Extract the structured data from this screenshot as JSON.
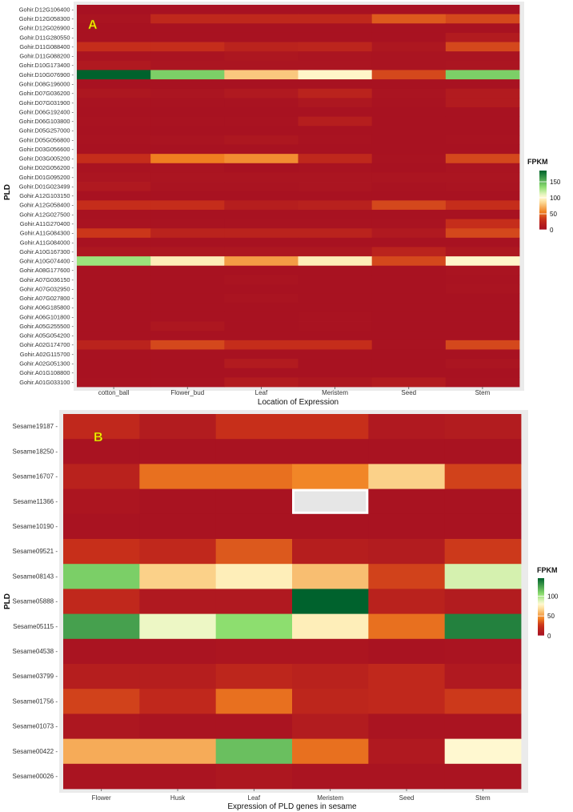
{
  "chart_data": [
    {
      "type": "heatmap",
      "panel_label": "A",
      "xlabel": "Location of Expression",
      "ylabel": "PLD",
      "categories": [
        "cotton_ball",
        "Flower_bud",
        "Leaf",
        "Meristem",
        "Seed",
        "Stem"
      ],
      "rows": [
        "Gohir.D12G106400",
        "Gohir.D12G058300",
        "Gohir.D12G026900",
        "Gohir.D11G280550",
        "Gohir.D11G088400",
        "Gohir.D11G088200",
        "Gohir.D10G173400",
        "Gohir.D10G076900",
        "Gohir.D08G196000",
        "Gohir.D07G036200",
        "Gohir.D07G031900",
        "Gohir.D06G192400",
        "Gohir.D06G103800",
        "Gohir.D05G257000",
        "Gohir.D05G056800",
        "Gohir.D03G056600",
        "Gohir.D03G005200",
        "Gohir.D02G056200",
        "Gohir.D01G095200",
        "Gohir.D01G023499",
        "Gohir.A12G103150",
        "Gohir.A12G058400",
        "Gohir.A12G027500",
        "Gohir.A11G270400",
        "Gohir.A11G084300",
        "Gohir.A11G084000",
        "Gohir.A10G167300",
        "Gohir.A10G074400",
        "Gohir.A08G177600",
        "Gohir.A07G036150",
        "Gohir.A07G032950",
        "Gohir.A07G027800",
        "Gohir.A06G185800",
        "Gohir.A06G101800",
        "Gohir.A05G255500",
        "Gohir.A05G054200",
        "Gohir.A02G174700",
        "Gohir.A02G115700",
        "Gohir.A02G051300",
        "Gohir.A01G108800",
        "Gohir.A01G033100"
      ],
      "values": [
        [
          2,
          2,
          2,
          2,
          2,
          2
        ],
        [
          5,
          25,
          25,
          25,
          45,
          40
        ],
        [
          3,
          3,
          3,
          3,
          3,
          3
        ],
        [
          3,
          3,
          3,
          3,
          3,
          12
        ],
        [
          30,
          30,
          20,
          22,
          8,
          40
        ],
        [
          5,
          5,
          8,
          6,
          5,
          5
        ],
        [
          10,
          6,
          6,
          6,
          5,
          6
        ],
        [
          185,
          140,
          80,
          100,
          40,
          140
        ],
        [
          3,
          3,
          3,
          3,
          3,
          3
        ],
        [
          8,
          6,
          10,
          20,
          5,
          12
        ],
        [
          4,
          4,
          4,
          8,
          4,
          12
        ],
        [
          3,
          3,
          3,
          3,
          3,
          3
        ],
        [
          4,
          4,
          4,
          15,
          3,
          3
        ],
        [
          3,
          3,
          3,
          3,
          3,
          3
        ],
        [
          4,
          5,
          8,
          4,
          3,
          4
        ],
        [
          3,
          3,
          3,
          3,
          3,
          3
        ],
        [
          30,
          55,
          60,
          25,
          4,
          40
        ],
        [
          4,
          5,
          3,
          4,
          3,
          5
        ],
        [
          6,
          6,
          6,
          6,
          6,
          6
        ],
        [
          10,
          5,
          5,
          6,
          4,
          5
        ],
        [
          3,
          3,
          3,
          3,
          3,
          3
        ],
        [
          30,
          30,
          15,
          18,
          40,
          30
        ],
        [
          3,
          3,
          3,
          3,
          3,
          3
        ],
        [
          4,
          4,
          4,
          4,
          4,
          30
        ],
        [
          35,
          20,
          20,
          20,
          10,
          40
        ],
        [
          3,
          3,
          3,
          3,
          3,
          3
        ],
        [
          8,
          8,
          8,
          8,
          20,
          8
        ],
        [
          130,
          95,
          65,
          95,
          40,
          100
        ],
        [
          3,
          3,
          3,
          3,
          3,
          5
        ],
        [
          3,
          3,
          5,
          3,
          3,
          4
        ],
        [
          3,
          3,
          3,
          3,
          3,
          5
        ],
        [
          3,
          3,
          5,
          3,
          3,
          3
        ],
        [
          3,
          3,
          3,
          3,
          3,
          3
        ],
        [
          3,
          3,
          3,
          4,
          3,
          3
        ],
        [
          3,
          8,
          3,
          4,
          3,
          3
        ],
        [
          3,
          3,
          3,
          3,
          3,
          3
        ],
        [
          20,
          40,
          30,
          30,
          4,
          40
        ],
        [
          3,
          3,
          3,
          3,
          3,
          3
        ],
        [
          3,
          3,
          12,
          3,
          3,
          6
        ],
        [
          3,
          3,
          3,
          3,
          3,
          3
        ],
        [
          4,
          4,
          12,
          8,
          12,
          4
        ]
      ],
      "legend": {
        "title": "FPKM",
        "ticks": [
          0,
          50,
          100,
          150
        ],
        "range": [
          0,
          185
        ],
        "position": "right"
      },
      "colors": {
        "low": "#a50f22",
        "mid_low": "#f08020",
        "mid": "#fffbd6",
        "mid_high": "#8fe070",
        "high": "#00622d"
      }
    },
    {
      "type": "heatmap",
      "panel_label": "B",
      "xlabel": "Expression of PLD genes in sesame",
      "ylabel": "PLD",
      "categories": [
        "Flower",
        "Husk",
        "Leaf",
        "Meristem",
        "Seed",
        "Stem"
      ],
      "rows": [
        "Sesame19187",
        "Sesame18250",
        "Sesame16707",
        "Sesame11366",
        "Sesame10190",
        "Sesame09521",
        "Sesame08143",
        "Sesame05888",
        "Sesame05115",
        "Sesame04538",
        "Sesame03799",
        "Sesame01756",
        "Sesame01073",
        "Sesame00422",
        "Sesame00026"
      ],
      "values": [
        [
          20,
          10,
          25,
          25,
          8,
          10
        ],
        [
          3,
          3,
          3,
          3,
          3,
          3
        ],
        [
          15,
          40,
          40,
          45,
          65,
          30
        ],
        [
          5,
          3,
          3,
          null,
          3,
          3
        ],
        [
          3,
          3,
          3,
          3,
          3,
          3
        ],
        [
          25,
          20,
          35,
          12,
          10,
          28
        ],
        [
          110,
          65,
          75,
          60,
          30,
          90
        ],
        [
          20,
          8,
          8,
          145,
          15,
          10
        ],
        [
          125,
          85,
          105,
          75,
          40,
          135
        ],
        [
          4,
          4,
          5,
          5,
          3,
          4
        ],
        [
          12,
          12,
          18,
          15,
          20,
          8
        ],
        [
          30,
          20,
          40,
          18,
          20,
          28
        ],
        [
          6,
          4,
          4,
          10,
          4,
          4
        ],
        [
          55,
          55,
          115,
          40,
          8,
          80
        ],
        [
          4,
          4,
          6,
          4,
          4,
          4
        ]
      ],
      "legend": {
        "title": "FPKM",
        "ticks": [
          0,
          50,
          100
        ],
        "range": [
          0,
          145
        ],
        "position": "right"
      },
      "colors": {
        "low": "#a50f22",
        "mid_low": "#f08020",
        "mid": "#fffbd6",
        "mid_high": "#8fe070",
        "high": "#00622d",
        "na": "#e6e6e6"
      }
    }
  ]
}
